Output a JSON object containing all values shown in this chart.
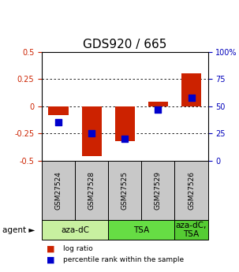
{
  "title": "GDS920 / 665",
  "samples": [
    "GSM27524",
    "GSM27528",
    "GSM27525",
    "GSM27529",
    "GSM27526"
  ],
  "log_ratios": [
    -0.08,
    -0.46,
    -0.32,
    0.04,
    0.3
  ],
  "percentile_ranks": [
    35,
    25,
    20,
    47,
    58
  ],
  "agents": [
    {
      "label": "aza-dC",
      "span": [
        0,
        2
      ]
    },
    {
      "label": "TSA",
      "span": [
        2,
        4
      ]
    },
    {
      "label": "aza-dC,\nTSA",
      "span": [
        4,
        5
      ]
    }
  ],
  "agent_colors": [
    "#c8f0a0",
    "#88dd66",
    "#88dd66"
  ],
  "bar_color": "#cc2200",
  "dot_color": "#0000cc",
  "ylim_left": [
    -0.5,
    0.5
  ],
  "ylim_right": [
    0,
    100
  ],
  "yticks_left": [
    -0.5,
    -0.25,
    0,
    0.25,
    0.5
  ],
  "yticks_right": [
    0,
    25,
    50,
    75,
    100
  ],
  "ytick_labels_left": [
    "-0.5",
    "-0.25",
    "0",
    "0.25",
    "0.5"
  ],
  "ytick_labels_right": [
    "0",
    "25",
    "50",
    "75",
    "100%"
  ],
  "hlines": [
    -0.25,
    0,
    0.25
  ],
  "bar_width": 0.6,
  "dot_size": 40,
  "title_fontsize": 11,
  "tick_fontsize": 7,
  "label_fontsize": 7.5,
  "agent_label_fontsize": 7.5,
  "legend_fontsize": 6.5,
  "sample_row_color": "#c8c8c8",
  "agent_arrow_label": "agent ►"
}
